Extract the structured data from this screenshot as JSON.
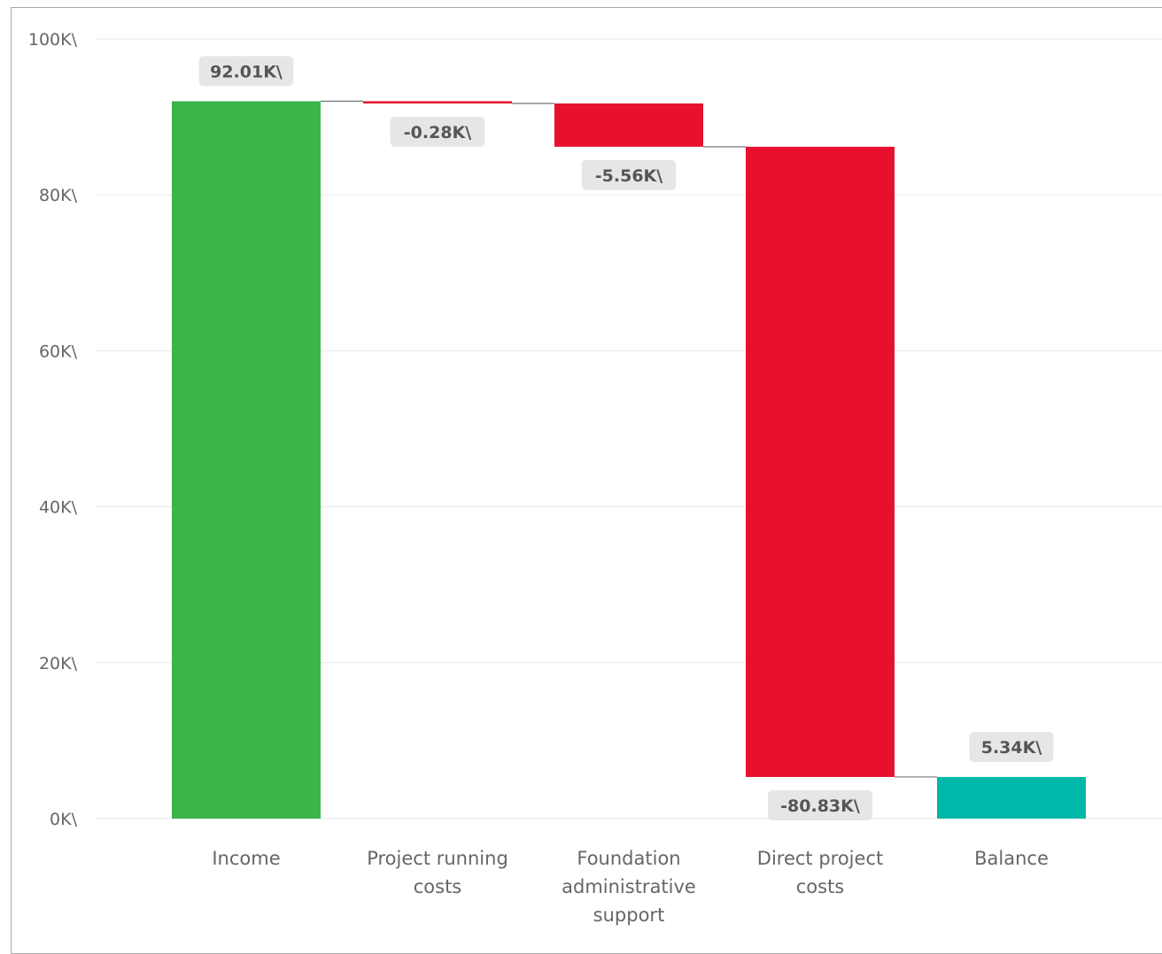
{
  "chart_data": {
    "type": "bar",
    "subtype": "waterfall",
    "title": "",
    "xlabel": "",
    "ylabel": "",
    "ylim": [
      0,
      100
    ],
    "grid": true,
    "y_ticks": [
      "0K\\",
      "20K\\",
      "40K\\",
      "60K\\",
      "80K\\",
      "100K\\"
    ],
    "y_tick_values": [
      0,
      20,
      40,
      60,
      80,
      100
    ],
    "categories": [
      [
        "Income"
      ],
      [
        "Project running",
        "costs"
      ],
      [
        "Foundation",
        "administrative",
        "support"
      ],
      [
        "Direct project",
        "costs"
      ],
      [
        "Balance"
      ]
    ],
    "values": [
      92.01,
      -0.28,
      -5.56,
      -80.83,
      5.34
    ],
    "data_labels": [
      "92.01K\\",
      "-0.28K\\",
      "-5.56K\\",
      "-80.83K\\",
      "5.34K\\"
    ],
    "kinds": [
      "increase",
      "decrease",
      "decrease",
      "decrease",
      "total"
    ],
    "colors": {
      "increase": "#3bb44a",
      "decrease": "#e8112d",
      "total": "#00b8aa"
    }
  }
}
